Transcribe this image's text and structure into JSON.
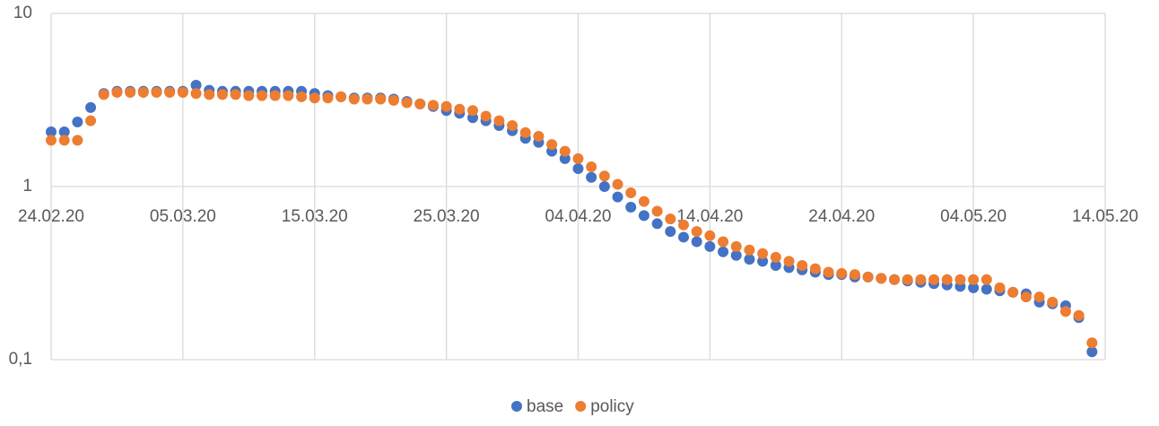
{
  "chart_data": {
    "type": "scatter",
    "x": [
      "24.02.20",
      "25.02.20",
      "26.02.20",
      "27.02.20",
      "28.02.20",
      "29.02.20",
      "01.03.20",
      "02.03.20",
      "03.03.20",
      "04.03.20",
      "05.03.20",
      "06.03.20",
      "07.03.20",
      "08.03.20",
      "09.03.20",
      "10.03.20",
      "11.03.20",
      "12.03.20",
      "13.03.20",
      "14.03.20",
      "15.03.20",
      "16.03.20",
      "17.03.20",
      "18.03.20",
      "19.03.20",
      "20.03.20",
      "21.03.20",
      "22.03.20",
      "23.03.20",
      "24.03.20",
      "25.03.20",
      "26.03.20",
      "27.03.20",
      "28.03.20",
      "29.03.20",
      "30.03.20",
      "31.03.20",
      "01.04.20",
      "02.04.20",
      "03.04.20",
      "04.04.20",
      "05.04.20",
      "06.04.20",
      "07.04.20",
      "08.04.20",
      "09.04.20",
      "10.04.20",
      "11.04.20",
      "12.04.20",
      "13.04.20",
      "14.04.20",
      "15.04.20",
      "16.04.20",
      "17.04.20",
      "18.04.20",
      "19.04.20",
      "20.04.20",
      "21.04.20",
      "22.04.20",
      "23.04.20",
      "24.04.20",
      "25.04.20",
      "26.04.20",
      "27.04.20",
      "28.04.20",
      "29.04.20",
      "30.04.20",
      "01.05.20",
      "02.05.20",
      "03.05.20",
      "04.05.20",
      "05.05.20",
      "06.05.20",
      "07.05.20",
      "08.05.20",
      "09.05.20",
      "10.05.20",
      "11.05.20",
      "12.05.20",
      "13.05.20"
    ],
    "series": [
      {
        "name": "base",
        "color": "#4472c4",
        "values": [
          2.07,
          2.07,
          2.36,
          2.86,
          3.45,
          3.55,
          3.55,
          3.55,
          3.55,
          3.55,
          3.55,
          3.85,
          3.6,
          3.55,
          3.55,
          3.55,
          3.55,
          3.55,
          3.55,
          3.55,
          3.45,
          3.35,
          3.3,
          3.25,
          3.25,
          3.25,
          3.2,
          3.1,
          3.0,
          2.9,
          2.75,
          2.65,
          2.5,
          2.4,
          2.25,
          2.1,
          1.9,
          1.8,
          1.6,
          1.45,
          1.27,
          1.13,
          1.0,
          0.87,
          0.76,
          0.68,
          0.61,
          0.55,
          0.51,
          0.48,
          0.45,
          0.42,
          0.4,
          0.38,
          0.37,
          0.35,
          0.34,
          0.33,
          0.32,
          0.31,
          0.31,
          0.3,
          0.3,
          0.295,
          0.29,
          0.285,
          0.28,
          0.275,
          0.27,
          0.265,
          0.26,
          0.255,
          0.25,
          0.245,
          0.24,
          0.215,
          0.21,
          0.205,
          0.175,
          0.111
        ]
      },
      {
        "name": "policy",
        "color": "#ed7d31",
        "values": [
          1.85,
          1.85,
          1.85,
          2.4,
          3.4,
          3.5,
          3.5,
          3.5,
          3.5,
          3.5,
          3.5,
          3.45,
          3.4,
          3.4,
          3.4,
          3.35,
          3.35,
          3.35,
          3.35,
          3.3,
          3.25,
          3.25,
          3.3,
          3.2,
          3.2,
          3.2,
          3.15,
          3.05,
          3.0,
          2.95,
          2.9,
          2.8,
          2.75,
          2.55,
          2.4,
          2.25,
          2.05,
          1.95,
          1.75,
          1.6,
          1.45,
          1.3,
          1.15,
          1.03,
          0.92,
          0.82,
          0.72,
          0.65,
          0.6,
          0.55,
          0.52,
          0.48,
          0.45,
          0.43,
          0.41,
          0.39,
          0.37,
          0.35,
          0.335,
          0.32,
          0.315,
          0.31,
          0.3,
          0.295,
          0.29,
          0.29,
          0.29,
          0.29,
          0.29,
          0.29,
          0.29,
          0.29,
          0.26,
          0.245,
          0.23,
          0.23,
          0.215,
          0.19,
          0.18,
          0.125
        ]
      }
    ],
    "xlim": [
      "24.02.20",
      "14.05.20"
    ],
    "xticks": [
      "24.02.20",
      "05.03.20",
      "15.03.20",
      "25.03.20",
      "04.04.20",
      "14.04.20",
      "24.04.20",
      "04.05.20",
      "14.05.20"
    ],
    "ylim": [
      0.1,
      10
    ],
    "yticks": [
      {
        "value": 0.1,
        "label": "0,1"
      },
      1,
      10
    ],
    "log_y": true,
    "x_axis_crosses": 1,
    "grid": true,
    "legend": "bottom"
  }
}
